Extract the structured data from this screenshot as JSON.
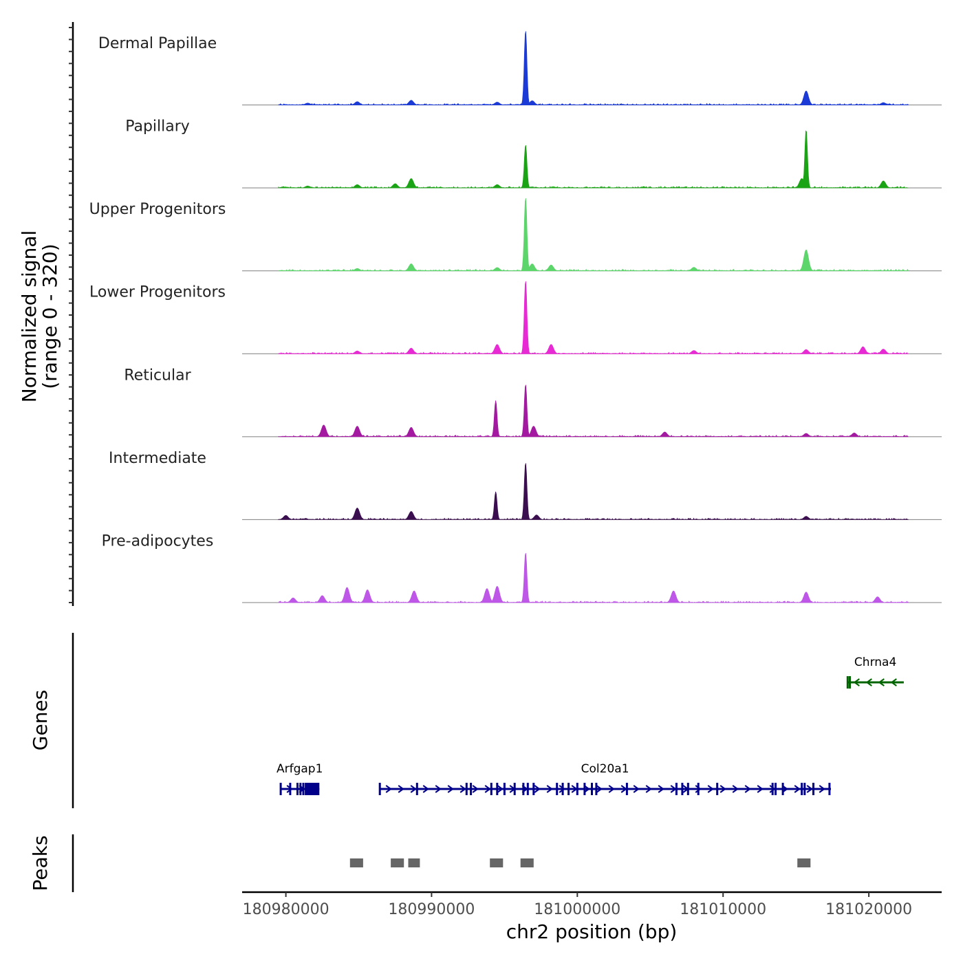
{
  "chart_data": {
    "type": "area",
    "title": "",
    "ylabel_line1": "Normalized signal",
    "ylabel_line2": "(range 0 - 320)",
    "y_range": [
      0,
      320
    ],
    "xlabel": "chr2 position (bp)",
    "x_range": [
      180977000,
      181025000
    ],
    "x_ticks": [
      180980000,
      180990000,
      181000000,
      181010000,
      181020000
    ],
    "x_tick_labels": [
      "180980000",
      "180990000",
      "181000000",
      "181010000",
      "181020000"
    ],
    "series": [
      {
        "name": "Dermal Papillae",
        "color": "#1c3bd6",
        "peaks": [
          [
            180981500,
            8
          ],
          [
            180984900,
            14
          ],
          [
            180988600,
            20
          ],
          [
            180994500,
            12
          ],
          [
            180996450,
            320
          ],
          [
            180996900,
            18
          ],
          [
            181015700,
            60
          ],
          [
            181021000,
            10
          ]
        ]
      },
      {
        "name": "Papillary",
        "color": "#1aa314",
        "peaks": [
          [
            180981500,
            8
          ],
          [
            180984900,
            14
          ],
          [
            180987500,
            18
          ],
          [
            180988600,
            40
          ],
          [
            180994500,
            14
          ],
          [
            180996450,
            185
          ],
          [
            181015400,
            40
          ],
          [
            181015700,
            250
          ],
          [
            181021000,
            30
          ]
        ]
      },
      {
        "name": "Upper Progenitors",
        "color": "#5cd66b",
        "peaks": [
          [
            180984900,
            10
          ],
          [
            180988600,
            30
          ],
          [
            180994500,
            14
          ],
          [
            180996450,
            315
          ],
          [
            180996900,
            30
          ],
          [
            180998200,
            25
          ],
          [
            181008000,
            15
          ],
          [
            181015700,
            90
          ]
        ]
      },
      {
        "name": "Lower Progenitors",
        "color": "#e82ad4",
        "peaks": [
          [
            180984900,
            12
          ],
          [
            180988600,
            24
          ],
          [
            180994500,
            40
          ],
          [
            180996450,
            315
          ],
          [
            180998200,
            40
          ],
          [
            181008000,
            14
          ],
          [
            181015700,
            18
          ],
          [
            181019600,
            30
          ],
          [
            181021000,
            20
          ]
        ]
      },
      {
        "name": "Reticular",
        "color": "#a31aa1",
        "peaks": [
          [
            180982600,
            50
          ],
          [
            180984900,
            45
          ],
          [
            180988600,
            40
          ],
          [
            180994400,
            155
          ],
          [
            180996450,
            225
          ],
          [
            180997000,
            45
          ],
          [
            181006000,
            20
          ],
          [
            181015700,
            14
          ],
          [
            181019000,
            16
          ]
        ]
      },
      {
        "name": "Intermediate",
        "color": "#3b0e4f",
        "peaks": [
          [
            180980000,
            18
          ],
          [
            180984900,
            50
          ],
          [
            180988600,
            35
          ],
          [
            180994400,
            120
          ],
          [
            180996450,
            245
          ],
          [
            180997200,
            20
          ],
          [
            181015700,
            14
          ]
        ]
      },
      {
        "name": "Pre-adipocytes",
        "color": "#be57e8",
        "peaks": [
          [
            180980500,
            20
          ],
          [
            180982500,
            30
          ],
          [
            180984200,
            65
          ],
          [
            180985600,
            55
          ],
          [
            180988800,
            50
          ],
          [
            180993800,
            60
          ],
          [
            180994500,
            70
          ],
          [
            180996450,
            215
          ],
          [
            181006600,
            50
          ],
          [
            181015700,
            45
          ],
          [
            181020600,
            25
          ]
        ]
      }
    ],
    "genes": [
      {
        "name": "Arfgap1",
        "start": 180979600,
        "end": 180982300,
        "strand": "+",
        "color": "#00008b",
        "exons": [
          180979650,
          180980300,
          180980800,
          180981000,
          180981200,
          180981400,
          180981600,
          180981800,
          180982000,
          180982200
        ]
      },
      {
        "name": "Col20a1",
        "start": 180986400,
        "end": 181017400,
        "strand": "+",
        "color": "#00008b",
        "exons": [
          180986450,
          180989000,
          180992400,
          180992700,
          180994100,
          180994500,
          180995000,
          180995700,
          180996300,
          180996600,
          180997000,
          180998600,
          180999000,
          180999400,
          181000000,
          181000500,
          181001000,
          181001300,
          181003400,
          181006800,
          181007200,
          181007600,
          181008300,
          181009600,
          181013400,
          181013600,
          181014100,
          181015400,
          181015600,
          181016200,
          181017300
        ]
      },
      {
        "name": "Chrna4",
        "start": 181018500,
        "end": 181022400,
        "strand": "-",
        "color": "#006400",
        "exons": [
          181018550,
          181018700
        ]
      }
    ],
    "peak_regions": [
      [
        180984400,
        180985300
      ],
      [
        180987200,
        180988100
      ],
      [
        180988400,
        180989200
      ],
      [
        180994000,
        180994900
      ],
      [
        180996100,
        180997000
      ],
      [
        181015100,
        181016000
      ]
    ]
  },
  "panels": {
    "genes_title": "Genes",
    "peaks_title": "Peaks"
  }
}
